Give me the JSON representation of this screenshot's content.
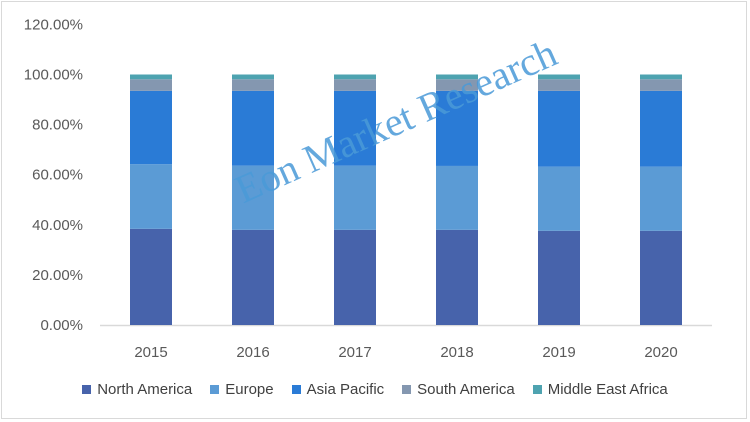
{
  "chart_data": {
    "type": "bar",
    "stacked": true,
    "categories": [
      "2015",
      "2016",
      "2017",
      "2018",
      "2019",
      "2020"
    ],
    "series": [
      {
        "name": "North America",
        "color": "#4763ab",
        "values": [
          38.4,
          38.0,
          38.0,
          38.0,
          37.6,
          37.6
        ]
      },
      {
        "name": "Europe",
        "color": "#5b9bd5",
        "values": [
          25.8,
          25.6,
          25.6,
          25.5,
          25.6,
          25.6
        ]
      },
      {
        "name": "Asia Pacific",
        "color": "#2a7bd6",
        "values": [
          29.3,
          29.9,
          29.9,
          30.0,
          30.3,
          30.3
        ]
      },
      {
        "name": "South America",
        "color": "#8497b0",
        "values": [
          4.6,
          4.6,
          4.6,
          4.6,
          4.6,
          4.6
        ]
      },
      {
        "name": "Middle East Africa",
        "color": "#4ea3b0",
        "values": [
          1.9,
          1.9,
          1.9,
          1.9,
          1.9,
          1.9
        ]
      }
    ],
    "yticks": [
      "0.00%",
      "20.00%",
      "40.00%",
      "60.00%",
      "80.00%",
      "100.00%",
      "120.00%"
    ],
    "ylim": [
      0,
      120
    ],
    "grid": false,
    "legend": "bottom",
    "watermark": "Eon Market Research"
  }
}
